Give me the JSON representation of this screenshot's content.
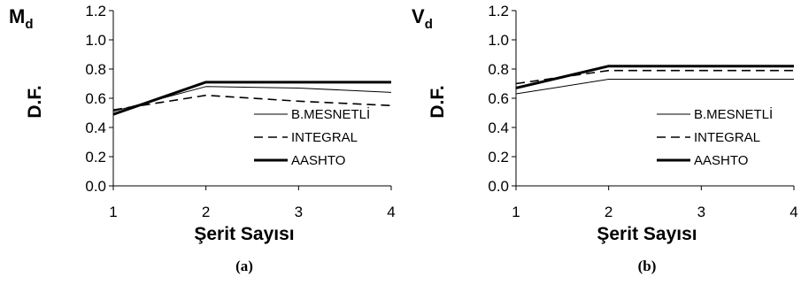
{
  "chart_data": [
    {
      "type": "line",
      "panel": "(a)",
      "corner_label": {
        "main": "M",
        "sub": "d"
      },
      "xlabel": "Şerit Sayısı",
      "ylabel": "D.F.",
      "x": [
        1,
        2,
        3,
        4
      ],
      "ylim": [
        0.0,
        1.2
      ],
      "yticks": [
        "0.0",
        "0.2",
        "0.4",
        "0.6",
        "0.8",
        "1.0",
        "1.2"
      ],
      "grid": false,
      "legend_position": "bottom-right",
      "series": [
        {
          "name": "B.MESNETLİ",
          "style": "thin",
          "values": [
            0.51,
            0.68,
            0.67,
            0.64
          ]
        },
        {
          "name": "INTEGRAL",
          "style": "dashed",
          "values": [
            0.52,
            0.62,
            0.58,
            0.55
          ]
        },
        {
          "name": "AASHTO",
          "style": "thick",
          "values": [
            0.49,
            0.71,
            0.71,
            0.71
          ]
        }
      ]
    },
    {
      "type": "line",
      "panel": "(b)",
      "corner_label": {
        "main": "V",
        "sub": "d"
      },
      "xlabel": "Şerit Sayısı",
      "ylabel": "D.F.",
      "x": [
        1,
        2,
        3,
        4
      ],
      "ylim": [
        0.0,
        1.2
      ],
      "yticks": [
        "0.0",
        "0.2",
        "0.4",
        "0.6",
        "0.8",
        "1.0",
        "1.2"
      ],
      "grid": false,
      "legend_position": "bottom-right",
      "series": [
        {
          "name": "B.MESNETLİ",
          "style": "thin",
          "values": [
            0.63,
            0.73,
            0.73,
            0.73
          ]
        },
        {
          "name": "INTEGRAL",
          "style": "dashed",
          "values": [
            0.7,
            0.79,
            0.79,
            0.79
          ]
        },
        {
          "name": "AASHTO",
          "style": "thick",
          "values": [
            0.67,
            0.82,
            0.82,
            0.82
          ]
        }
      ]
    }
  ]
}
